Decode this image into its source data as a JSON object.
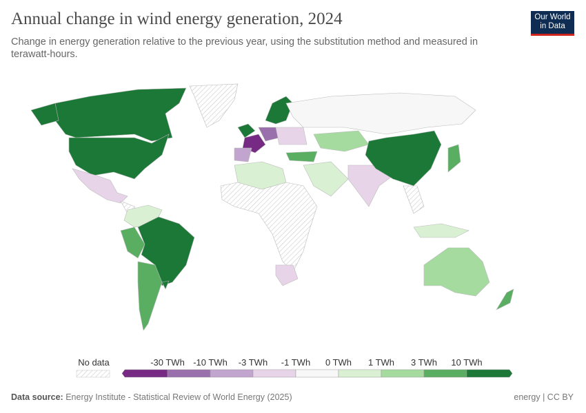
{
  "header": {
    "title": "Annual change in wind energy generation, 2024",
    "subtitle": "Change in energy generation relative to the previous year, using the substitution method and measured in terawatt-hours.",
    "logo": "Our World in Data"
  },
  "legend": {
    "no_data_label": "No data",
    "ticks": [
      "-30 TWh",
      "-10 TWh",
      "-3 TWh",
      "-1 TWh",
      "0 TWh",
      "1 TWh",
      "3 TWh",
      "10 TWh"
    ],
    "colors": [
      "#762a83",
      "#9970ab",
      "#c2a5cf",
      "#e7d4e8",
      "#f7f7f7",
      "#d9f0d3",
      "#a6dba0",
      "#5aae61",
      "#1b7837"
    ]
  },
  "footer": {
    "source_label": "Data source:",
    "source": "Energy Institute - Statistical Review of World Energy (2025)",
    "license": "energy | CC BY"
  }
}
